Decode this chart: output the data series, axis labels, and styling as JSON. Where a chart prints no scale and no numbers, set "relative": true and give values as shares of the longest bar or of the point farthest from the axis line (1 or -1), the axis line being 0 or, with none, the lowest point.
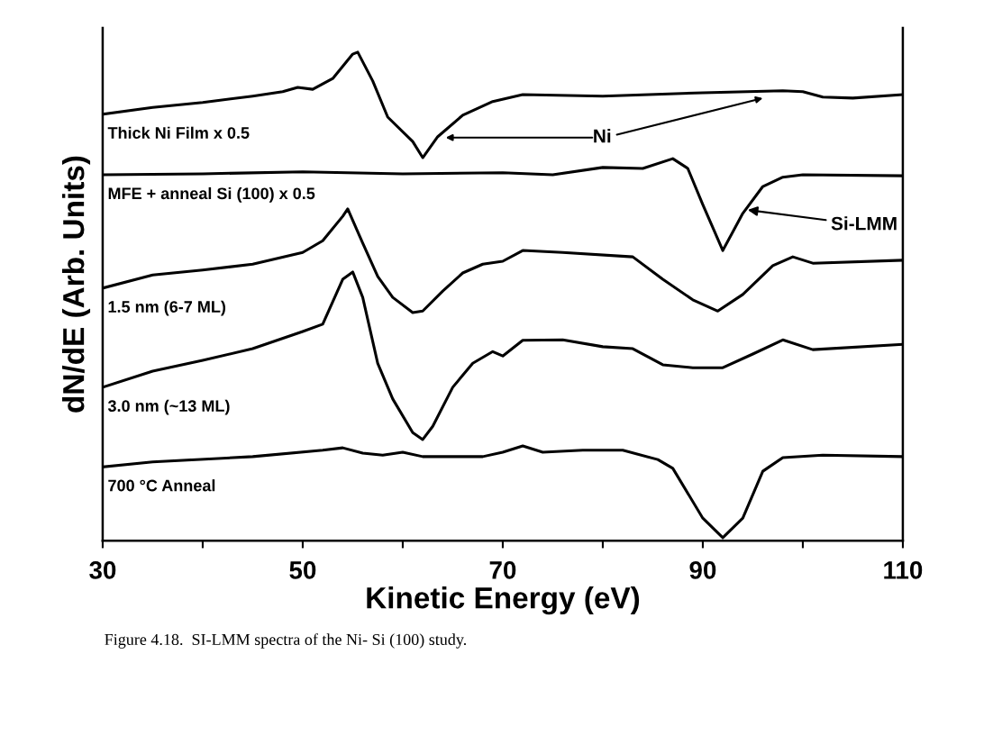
{
  "chart_data": {
    "type": "line",
    "relative": true,
    "xlabel": "Kinetic Energy (eV)",
    "ylabel": "dN/dE (Arb. Units)",
    "xlim": [
      30,
      110
    ],
    "xticks": [
      30,
      {
        "value": 40,
        "label": null
      },
      50,
      {
        "value": 60,
        "label": null
      },
      70,
      {
        "value": 80,
        "label": null
      },
      90,
      {
        "value": 100,
        "label": null
      },
      110
    ],
    "grid": false,
    "legend": false,
    "marker": "none",
    "line_style": "solid",
    "series": [
      {
        "name": "Thick Ni Film x 0.5",
        "color": "#000000",
        "x": [
          30,
          35,
          40,
          45,
          48,
          49.5,
          51,
          53,
          55,
          55.5,
          57,
          58.5,
          61,
          62,
          63.5,
          66,
          69,
          72,
          80,
          90,
          98,
          100,
          102,
          105,
          110
        ],
        "values": [
          0.873,
          0.887,
          0.897,
          0.91,
          0.919,
          0.928,
          0.924,
          0.946,
          0.996,
          1.0,
          0.941,
          0.867,
          0.817,
          0.784,
          0.827,
          0.871,
          0.899,
          0.913,
          0.91,
          0.917,
          0.921,
          0.919,
          0.908,
          0.906,
          0.913
        ]
      },
      {
        "name": "MFE + anneal Si (100) x 0.5",
        "color": "#000000",
        "x": [
          30,
          40,
          50,
          60,
          70,
          75,
          80,
          84,
          87,
          88.5,
          90,
          92,
          94,
          96,
          98,
          100,
          110
        ],
        "values": [
          0.749,
          0.751,
          0.755,
          0.751,
          0.753,
          0.749,
          0.764,
          0.762,
          0.782,
          0.762,
          0.688,
          0.594,
          0.67,
          0.725,
          0.744,
          0.749,
          0.747
        ]
      },
      {
        "name": "1.5 nm (6-7 ML)",
        "color": "#000000",
        "x": [
          30,
          35,
          40,
          45,
          50,
          52,
          54,
          54.5,
          56,
          57.5,
          59,
          61,
          62,
          64,
          66,
          68,
          70,
          72,
          76,
          83,
          86,
          89,
          91.5,
          94,
          97,
          99,
          101,
          110
        ],
        "values": [
          0.517,
          0.544,
          0.554,
          0.566,
          0.59,
          0.614,
          0.664,
          0.679,
          0.609,
          0.541,
          0.498,
          0.467,
          0.47,
          0.511,
          0.548,
          0.566,
          0.572,
          0.594,
          0.59,
          0.581,
          0.535,
          0.493,
          0.47,
          0.504,
          0.563,
          0.581,
          0.568,
          0.574
        ]
      },
      {
        "name": "3.0 nm (~13 ML)",
        "color": "#000000",
        "x": [
          30,
          35,
          40,
          45,
          50,
          52,
          54,
          55,
          56,
          57.5,
          59,
          61,
          62,
          63,
          65,
          67,
          69,
          70,
          72,
          76,
          80,
          83,
          86,
          89,
          92,
          95,
          98,
          101,
          110
        ],
        "values": [
          0.314,
          0.347,
          0.369,
          0.393,
          0.428,
          0.443,
          0.535,
          0.55,
          0.498,
          0.363,
          0.29,
          0.221,
          0.207,
          0.234,
          0.314,
          0.363,
          0.387,
          0.378,
          0.41,
          0.411,
          0.397,
          0.393,
          0.36,
          0.354,
          0.354,
          0.382,
          0.411,
          0.391,
          0.402
        ]
      },
      {
        "name": "700 °C Anneal",
        "color": "#000000",
        "x": [
          30,
          35,
          45,
          52,
          54,
          56,
          58,
          60,
          62,
          68,
          70,
          72,
          74,
          78,
          82,
          85.5,
          87,
          90,
          92,
          94,
          96,
          98,
          102,
          110
        ],
        "values": [
          0.151,
          0.161,
          0.172,
          0.185,
          0.19,
          0.179,
          0.175,
          0.181,
          0.172,
          0.172,
          0.181,
          0.194,
          0.181,
          0.185,
          0.185,
          0.166,
          0.148,
          0.046,
          0.006,
          0.046,
          0.142,
          0.17,
          0.175,
          0.172
        ]
      }
    ],
    "annotations": [
      "Ni",
      {
        "text": "Si-LMM",
        "x": 94.5,
        "y": 0.677
      },
      "Figure 4.18.  SI-LMM spectra of the Ni- Si (100) study."
    ]
  }
}
